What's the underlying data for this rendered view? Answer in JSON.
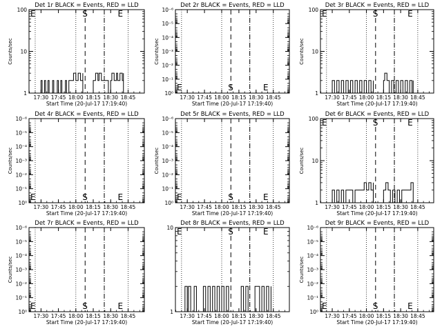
{
  "page": {
    "start_time_label": "Start Time (20-Jul-17 17:19:40)",
    "xtick_labels": [
      "17:30",
      "17:45",
      "18:00",
      "18:15",
      "18:30",
      "18:45"
    ],
    "ylabel": "Counts/sec",
    "marker_labels": {
      "s": "S",
      "e": "E"
    }
  },
  "chart_data": [
    {
      "id": "1r",
      "type": "line",
      "title": "Det 1r BLACK = Events, RED = LLD",
      "xlabel": "Start Time (20-Jul-17 17:19:40)",
      "ylabel": "Counts/sec",
      "xlim": [
        "17:19:40",
        "18:59:00"
      ],
      "yscale": "log",
      "ylim": [
        1,
        100
      ],
      "ytick_labels": [
        "1",
        "10",
        "100"
      ],
      "markers": {
        "E_left": "17:19:40",
        "S": "18:08:00",
        "dashed_right": "18:24:30",
        "E": "18:38:30"
      },
      "series": [
        {
          "color": "#000000",
          "segments": [
            {
              "x": [
                "17:28",
                "17:30",
                "17:31",
                "17:33",
                "17:34",
                "17:36",
                "17:37",
                "17:40",
                "17:41",
                "17:44",
                "17:45",
                "17:47",
                "17:48",
                "17:51",
                "17:52",
                "17:54",
                "17:55",
                "17:57",
                "17:58",
                "18:00",
                "18:02",
                "18:04",
                "18:06"
              ],
              "y": [
                1,
                2,
                1,
                2,
                1,
                2,
                1,
                2,
                1,
                2,
                1,
                2,
                1,
                2,
                1,
                2,
                2,
                2,
                3,
                2,
                3,
                2,
                3
              ]
            },
            {
              "x": [
                "18:15",
                "18:17",
                "18:19",
                "18:20",
                "18:22",
                "18:24",
                "18:26",
                "18:28",
                "18:30",
                "18:31",
                "18:33",
                "18:35",
                "18:36",
                "18:38",
                "18:40",
                "18:41"
              ],
              "y": [
                2,
                3,
                2,
                3,
                2,
                2,
                2,
                1,
                2,
                3,
                2,
                3,
                2,
                3,
                2,
                3
              ]
            }
          ]
        }
      ]
    },
    {
      "id": "2r",
      "type": "line",
      "title": "Det 2r BLACK = Events, RED = LLD",
      "xlabel": "Start Time (20-Jul-17 17:19:40)",
      "ylabel": "Counts/sec",
      "xlim": [
        "17:19:40",
        "18:59:00"
      ],
      "yscale": "log",
      "ylim": [
        1,
        1e-06
      ],
      "ytick_labels": [
        "10⁰",
        "10⁻¹",
        "10⁻²",
        "10⁻³",
        "10⁻⁴",
        "10⁻⁵",
        "10⁻⁶"
      ],
      "markers": {
        "E_left": "17:19:40",
        "S": "18:08:00",
        "dashed_right": "18:24:30",
        "E": "18:38:30"
      },
      "series": []
    },
    {
      "id": "3r",
      "type": "line",
      "title": "Det 3r BLACK = Events, RED = LLD",
      "xlabel": "Start Time (20-Jul-17 17:19:40)",
      "ylabel": "Counts/sec",
      "xlim": [
        "17:19:40",
        "18:59:00"
      ],
      "yscale": "log",
      "ylim": [
        1,
        100
      ],
      "ytick_labels": [
        "1",
        "10",
        "100"
      ],
      "markers": {
        "E_left": "17:19:40",
        "S": "18:08:00",
        "dashed_right": "18:24:30",
        "E": "18:38:30"
      },
      "series": [
        {
          "color": "#000000",
          "segments": [
            {
              "x": [
                "17:30",
                "17:32",
                "17:34",
                "17:36",
                "17:38",
                "17:40",
                "17:42",
                "17:44",
                "17:46",
                "17:48",
                "17:50",
                "17:52",
                "17:54",
                "17:56",
                "17:58",
                "18:00",
                "18:02",
                "18:04",
                "18:06"
              ],
              "y": [
                2,
                1,
                2,
                1,
                2,
                1,
                2,
                1,
                2,
                1,
                2,
                1,
                2,
                1,
                2,
                1,
                2,
                1,
                2
              ]
            },
            {
              "x": [
                "18:15",
                "18:16",
                "18:18",
                "18:20",
                "18:22",
                "18:24",
                "18:26",
                "18:28",
                "18:30",
                "18:32",
                "18:34",
                "18:36",
                "18:38",
                "18:40",
                "18:41"
              ],
              "y": [
                2,
                3,
                2,
                1,
                2,
                1,
                2,
                1,
                2,
                1,
                2,
                1,
                2,
                1,
                2
              ]
            }
          ]
        }
      ]
    },
    {
      "id": "4r",
      "type": "line",
      "title": "Det 4r BLACK = Events, RED = LLD",
      "xlabel": "Start Time (20-Jul-17 17:19:40)",
      "ylabel": "Counts/sec",
      "xlim": [
        "17:19:40",
        "18:59:00"
      ],
      "yscale": "log",
      "ylim": [
        1,
        1e-06
      ],
      "ytick_labels": [
        "10⁰",
        "10⁻¹",
        "10⁻²",
        "10⁻³",
        "10⁻⁴",
        "10⁻⁵",
        "10⁻⁶"
      ],
      "markers": {
        "E_left": "17:19:40",
        "S": "18:08:00",
        "dashed_right": "18:24:30",
        "E": "18:38:30"
      },
      "series": []
    },
    {
      "id": "5r",
      "type": "line",
      "title": "Det 5r BLACK = Events, RED = LLD",
      "xlabel": "Start Time (20-Jul-17 17:19:40)",
      "ylabel": "Counts/sec",
      "xlim": [
        "17:19:40",
        "18:59:00"
      ],
      "yscale": "log",
      "ylim": [
        1,
        1e-06
      ],
      "ytick_labels": [
        "10⁰",
        "10⁻¹",
        "10⁻²",
        "10⁻³",
        "10⁻⁴",
        "10⁻⁵",
        "10⁻⁶"
      ],
      "markers": {
        "E_left": "17:19:40",
        "S": "18:08:00",
        "dashed_right": "18:24:30",
        "E": "18:38:30"
      },
      "series": []
    },
    {
      "id": "6r",
      "type": "line",
      "title": "Det 6r BLACK = Events, RED = LLD",
      "xlabel": "Start Time (20-Jul-17 17:19:40)",
      "ylabel": "Counts/sec",
      "xlim": [
        "17:19:40",
        "18:59:00"
      ],
      "yscale": "log",
      "ylim": [
        1,
        100
      ],
      "ytick_labels": [
        "1",
        "10",
        "100"
      ],
      "markers": {
        "E_left": "17:19:40",
        "S": "18:08:00",
        "dashed_right": "18:24:30",
        "E": "18:38:30"
      },
      "series": [
        {
          "color": "#000000",
          "segments": [
            {
              "x": [
                "17:30",
                "17:32",
                "17:34",
                "17:36",
                "17:38",
                "17:40",
                "17:42",
                "17:44",
                "17:46",
                "17:48",
                "17:50",
                "17:52",
                "17:54",
                "17:56",
                "17:58",
                "18:00",
                "18:02",
                "18:04",
                "18:06"
              ],
              "y": [
                2,
                1,
                2,
                1,
                2,
                1,
                2,
                2,
                2,
                1,
                2,
                2,
                2,
                2,
                3,
                2,
                3,
                2,
                3
              ]
            },
            {
              "x": [
                "18:15",
                "18:17",
                "18:19",
                "18:21",
                "18:23",
                "18:25",
                "18:27",
                "18:29",
                "18:31",
                "18:33",
                "18:35",
                "18:37",
                "18:39",
                "18:41"
              ],
              "y": [
                2,
                3,
                2,
                1,
                2,
                1,
                2,
                1,
                2,
                2,
                2,
                2,
                3,
                2
              ]
            }
          ]
        }
      ]
    },
    {
      "id": "7r",
      "type": "line",
      "title": "Det 7r BLACK = Events, RED = LLD",
      "xlabel": "Start Time (20-Jul-17 17:19:40)",
      "ylabel": "Counts/sec",
      "xlim": [
        "17:19:40",
        "18:59:00"
      ],
      "yscale": "log",
      "ylim": [
        1,
        1e-06
      ],
      "ytick_labels": [
        "10⁰",
        "10⁻¹",
        "10⁻²",
        "10⁻³",
        "10⁻⁴",
        "10⁻⁵",
        "10⁻⁶"
      ],
      "markers": {
        "E_left": "17:19:40",
        "S": "18:08:00",
        "dashed_right": "18:24:30",
        "E": "18:38:30"
      },
      "series": []
    },
    {
      "id": "8r",
      "type": "line",
      "title": "Det 8r BLACK = Events, RED = LLD",
      "xlabel": "Start Time (20-Jul-17 17:19:40)",
      "ylabel": "",
      "xlim": [
        "17:19:40",
        "18:59:00"
      ],
      "yscale": "log",
      "ylim": [
        1,
        10
      ],
      "ytick_labels": [
        "1",
        "10"
      ],
      "markers": {
        "E_left": "17:19:40",
        "S": "18:08:00",
        "dashed_right": "18:24:30",
        "E": "18:38:30"
      },
      "series": [
        {
          "color": "#000000",
          "segments": [
            {
              "x": [
                "17:27",
                "17:28",
                "17:30",
                "17:31",
                "17:33",
                "17:35",
                "17:36",
                "17:38",
                "17:40",
                "17:42",
                "17:44",
                "17:46",
                "17:48",
                "17:50",
                "17:52",
                "17:54",
                "17:56",
                "17:58",
                "18:00",
                "18:02",
                "18:04",
                "18:06"
              ],
              "y": [
                1,
                2,
                1,
                2,
                1,
                1,
                2,
                1,
                1,
                1,
                2,
                1,
                2,
                1,
                2,
                1,
                2,
                1,
                2,
                1,
                2,
                1
              ]
            },
            {
              "x": [
                "18:15",
                "18:17",
                "18:19",
                "18:21",
                "18:23",
                "18:25",
                "18:27",
                "18:29",
                "18:31",
                "18:33",
                "18:35",
                "18:37",
                "18:39",
                "18:41",
                "18:43"
              ],
              "y": [
                1,
                2,
                1,
                2,
                1,
                1,
                1,
                2,
                2,
                1,
                2,
                1,
                2,
                1,
                2
              ]
            }
          ]
        }
      ]
    },
    {
      "id": "9r",
      "type": "line",
      "title": "Det 9r BLACK = Events, RED = LLD",
      "xlabel": "Start Time (20-Jul-17 17:19:40)",
      "ylabel": "Counts/sec",
      "xlim": [
        "17:19:40",
        "18:59:00"
      ],
      "yscale": "log",
      "ylim": [
        1,
        1e-06
      ],
      "ytick_labels": [
        "10⁰",
        "10⁻¹",
        "10⁻²",
        "10⁻³",
        "10⁻⁴",
        "10⁻⁵",
        "10⁻⁶"
      ],
      "markers": {
        "E_left": "17:19:40",
        "S": "18:08:00",
        "dashed_right": "18:24:30",
        "E": "18:38:30"
      },
      "series": []
    }
  ]
}
